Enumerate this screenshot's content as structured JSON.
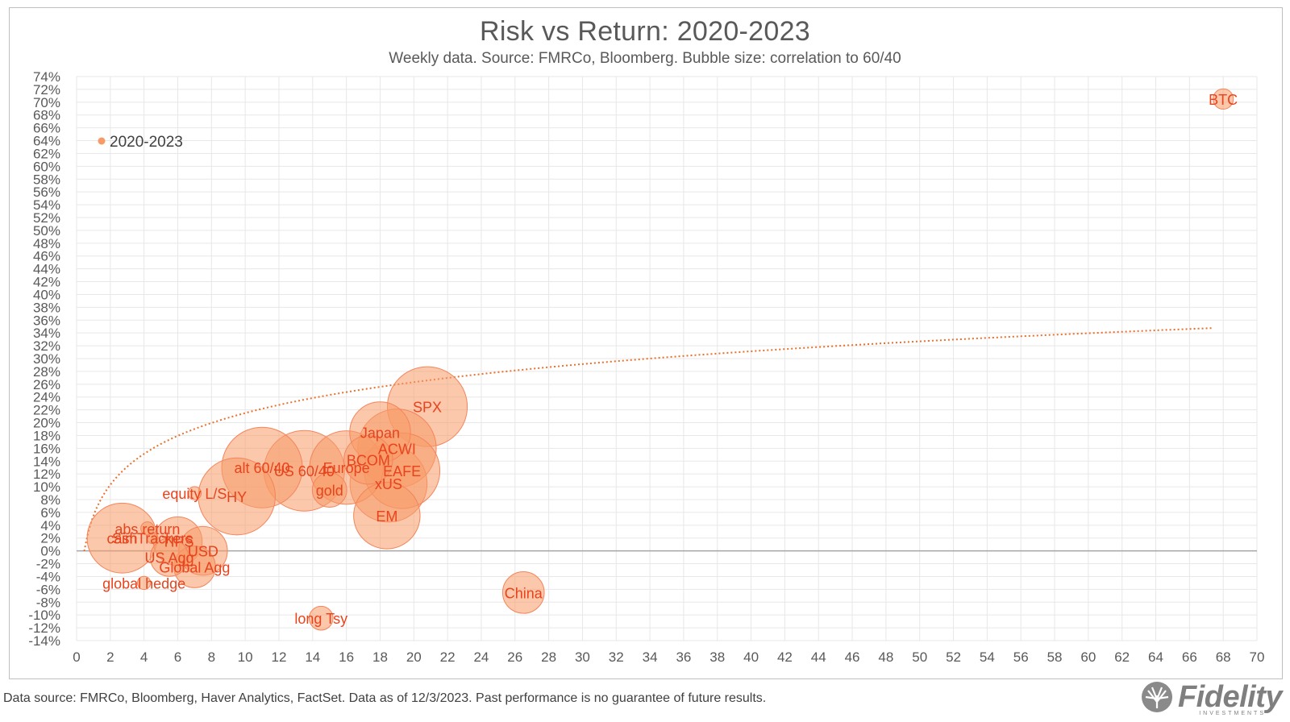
{
  "chart_data": {
    "type": "scatter",
    "title": "Risk vs Return: 2020-2023",
    "subtitle": "Weekly data.  Source: FMRCo, Bloomberg.  Bubble size: correlation to 60/40",
    "xlim": [
      0,
      70
    ],
    "ylim": [
      -14,
      74
    ],
    "x_tick_step": 2,
    "y_tick_step": 2,
    "y_tick_format": "percent",
    "grid": true,
    "legend": {
      "placement": "top-left",
      "entries": [
        "2020-2023"
      ]
    },
    "trendline": {
      "type": "logarithmic",
      "style": "dotted"
    },
    "series": [
      {
        "name": "2020-2023",
        "color": "#f79a68",
        "points": [
          {
            "label": "BTC",
            "x": 68.0,
            "y": 70.5,
            "size": 0.15
          },
          {
            "label": "SPX",
            "x": 20.8,
            "y": 22.5,
            "size": 0.99
          },
          {
            "label": "Japan",
            "x": 18.0,
            "y": 18.5,
            "size": 0.72
          },
          {
            "label": "ACWI",
            "x": 19.0,
            "y": 16.0,
            "size": 0.97
          },
          {
            "label": "BCOM",
            "x": 17.3,
            "y": 14.2,
            "size": 0.55
          },
          {
            "label": "EAFE",
            "x": 19.3,
            "y": 12.5,
            "size": 0.93
          },
          {
            "label": "Europe",
            "x": 16.0,
            "y": 13.0,
            "size": 0.9
          },
          {
            "label": "xUS",
            "x": 18.5,
            "y": 10.5,
            "size": 0.95
          },
          {
            "label": "EM",
            "x": 18.4,
            "y": 5.5,
            "size": 0.8
          },
          {
            "label": "gold",
            "x": 15.0,
            "y": 9.5,
            "size": 0.35
          },
          {
            "label": "US 60/40",
            "x": 13.5,
            "y": 12.5,
            "size": 1.0
          },
          {
            "label": "alt 60/40",
            "x": 11.0,
            "y": 13.0,
            "size": 1.0
          },
          {
            "label": "HY",
            "x": 9.5,
            "y": 8.5,
            "size": 0.95
          },
          {
            "label": "equity L/S",
            "x": 7.0,
            "y": 9.0,
            "size": 0.05
          },
          {
            "label": "abs return",
            "x": 4.2,
            "y": 3.5,
            "size": 0.05
          },
          {
            "label": "cash",
            "x": 2.7,
            "y": 2.0,
            "size": 0.85
          },
          {
            "label": "SimTrackers",
            "x": 4.5,
            "y": 2.0,
            "size": 0.02
          },
          {
            "label": "TIPS",
            "x": 6.0,
            "y": 1.5,
            "size": 0.55
          },
          {
            "label": "USD",
            "x": 7.5,
            "y": 0.0,
            "size": 0.55
          },
          {
            "label": "US Agg",
            "x": 5.5,
            "y": -1.0,
            "size": 0.4
          },
          {
            "label": "Global Agg",
            "x": 7.0,
            "y": -2.5,
            "size": 0.45
          },
          {
            "label": "global hedge",
            "x": 4.0,
            "y": -5.0,
            "size": 0.05
          },
          {
            "label": "long Tsy",
            "x": 14.5,
            "y": -10.5,
            "size": 0.2
          },
          {
            "label": "China",
            "x": 26.5,
            "y": -6.5,
            "size": 0.45
          }
        ]
      }
    ]
  },
  "footer": {
    "note": "Data source: FMRCo, Bloomberg, Haver Analytics, FactSet. Data as of 12/3/2023. Past performance is no guarantee of future results."
  },
  "brand": {
    "name": "Fidelity",
    "sub": "INVESTMENTS",
    "color": "#7f7f7f"
  },
  "colors": {
    "bubble_fill": "#f79a68",
    "bubble_stroke": "#f4845a",
    "label": "#e8431c",
    "trend": "#e8702a",
    "grid": "#e7e7e7",
    "zero_line": "#a6a6a6"
  }
}
